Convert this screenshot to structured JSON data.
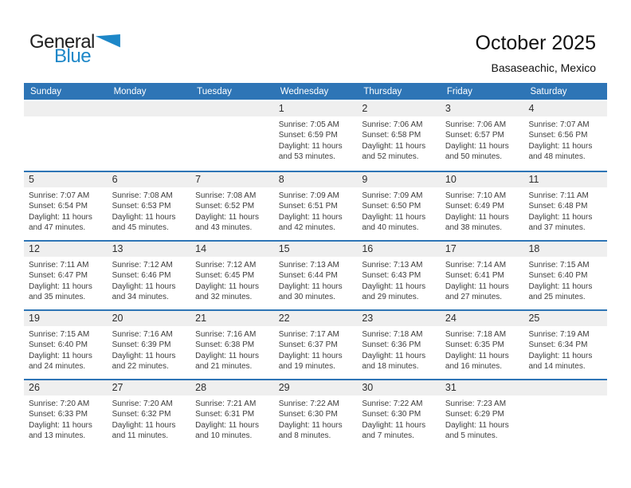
{
  "logo": {
    "part1": "General",
    "part2": "Blue",
    "triangle_icon": "pennant-triangle"
  },
  "header": {
    "title": "October 2025",
    "subtitle": "Basaseachic, Mexico"
  },
  "colors": {
    "header_bar_blue": "#2e75b6",
    "row_separator_blue": "#2e75b6",
    "date_band_gray": "#efefef",
    "logo_blue": "#1d87c8",
    "body_text": "#3d3d3d"
  },
  "weekdays": [
    "Sunday",
    "Monday",
    "Tuesday",
    "Wednesday",
    "Thursday",
    "Friday",
    "Saturday"
  ],
  "weeks": [
    [
      null,
      null,
      null,
      {
        "date": "1",
        "sunrise": "Sunrise: 7:05 AM",
        "sunset": "Sunset: 6:59 PM",
        "daylight1": "Daylight: 11 hours",
        "daylight2": "and 53 minutes."
      },
      {
        "date": "2",
        "sunrise": "Sunrise: 7:06 AM",
        "sunset": "Sunset: 6:58 PM",
        "daylight1": "Daylight: 11 hours",
        "daylight2": "and 52 minutes."
      },
      {
        "date": "3",
        "sunrise": "Sunrise: 7:06 AM",
        "sunset": "Sunset: 6:57 PM",
        "daylight1": "Daylight: 11 hours",
        "daylight2": "and 50 minutes."
      },
      {
        "date": "4",
        "sunrise": "Sunrise: 7:07 AM",
        "sunset": "Sunset: 6:56 PM",
        "daylight1": "Daylight: 11 hours",
        "daylight2": "and 48 minutes."
      }
    ],
    [
      {
        "date": "5",
        "sunrise": "Sunrise: 7:07 AM",
        "sunset": "Sunset: 6:54 PM",
        "daylight1": "Daylight: 11 hours",
        "daylight2": "and 47 minutes."
      },
      {
        "date": "6",
        "sunrise": "Sunrise: 7:08 AM",
        "sunset": "Sunset: 6:53 PM",
        "daylight1": "Daylight: 11 hours",
        "daylight2": "and 45 minutes."
      },
      {
        "date": "7",
        "sunrise": "Sunrise: 7:08 AM",
        "sunset": "Sunset: 6:52 PM",
        "daylight1": "Daylight: 11 hours",
        "daylight2": "and 43 minutes."
      },
      {
        "date": "8",
        "sunrise": "Sunrise: 7:09 AM",
        "sunset": "Sunset: 6:51 PM",
        "daylight1": "Daylight: 11 hours",
        "daylight2": "and 42 minutes."
      },
      {
        "date": "9",
        "sunrise": "Sunrise: 7:09 AM",
        "sunset": "Sunset: 6:50 PM",
        "daylight1": "Daylight: 11 hours",
        "daylight2": "and 40 minutes."
      },
      {
        "date": "10",
        "sunrise": "Sunrise: 7:10 AM",
        "sunset": "Sunset: 6:49 PM",
        "daylight1": "Daylight: 11 hours",
        "daylight2": "and 38 minutes."
      },
      {
        "date": "11",
        "sunrise": "Sunrise: 7:11 AM",
        "sunset": "Sunset: 6:48 PM",
        "daylight1": "Daylight: 11 hours",
        "daylight2": "and 37 minutes."
      }
    ],
    [
      {
        "date": "12",
        "sunrise": "Sunrise: 7:11 AM",
        "sunset": "Sunset: 6:47 PM",
        "daylight1": "Daylight: 11 hours",
        "daylight2": "and 35 minutes."
      },
      {
        "date": "13",
        "sunrise": "Sunrise: 7:12 AM",
        "sunset": "Sunset: 6:46 PM",
        "daylight1": "Daylight: 11 hours",
        "daylight2": "and 34 minutes."
      },
      {
        "date": "14",
        "sunrise": "Sunrise: 7:12 AM",
        "sunset": "Sunset: 6:45 PM",
        "daylight1": "Daylight: 11 hours",
        "daylight2": "and 32 minutes."
      },
      {
        "date": "15",
        "sunrise": "Sunrise: 7:13 AM",
        "sunset": "Sunset: 6:44 PM",
        "daylight1": "Daylight: 11 hours",
        "daylight2": "and 30 minutes."
      },
      {
        "date": "16",
        "sunrise": "Sunrise: 7:13 AM",
        "sunset": "Sunset: 6:43 PM",
        "daylight1": "Daylight: 11 hours",
        "daylight2": "and 29 minutes."
      },
      {
        "date": "17",
        "sunrise": "Sunrise: 7:14 AM",
        "sunset": "Sunset: 6:41 PM",
        "daylight1": "Daylight: 11 hours",
        "daylight2": "and 27 minutes."
      },
      {
        "date": "18",
        "sunrise": "Sunrise: 7:15 AM",
        "sunset": "Sunset: 6:40 PM",
        "daylight1": "Daylight: 11 hours",
        "daylight2": "and 25 minutes."
      }
    ],
    [
      {
        "date": "19",
        "sunrise": "Sunrise: 7:15 AM",
        "sunset": "Sunset: 6:40 PM",
        "daylight1": "Daylight: 11 hours",
        "daylight2": "and 24 minutes."
      },
      {
        "date": "20",
        "sunrise": "Sunrise: 7:16 AM",
        "sunset": "Sunset: 6:39 PM",
        "daylight1": "Daylight: 11 hours",
        "daylight2": "and 22 minutes."
      },
      {
        "date": "21",
        "sunrise": "Sunrise: 7:16 AM",
        "sunset": "Sunset: 6:38 PM",
        "daylight1": "Daylight: 11 hours",
        "daylight2": "and 21 minutes."
      },
      {
        "date": "22",
        "sunrise": "Sunrise: 7:17 AM",
        "sunset": "Sunset: 6:37 PM",
        "daylight1": "Daylight: 11 hours",
        "daylight2": "and 19 minutes."
      },
      {
        "date": "23",
        "sunrise": "Sunrise: 7:18 AM",
        "sunset": "Sunset: 6:36 PM",
        "daylight1": "Daylight: 11 hours",
        "daylight2": "and 18 minutes."
      },
      {
        "date": "24",
        "sunrise": "Sunrise: 7:18 AM",
        "sunset": "Sunset: 6:35 PM",
        "daylight1": "Daylight: 11 hours",
        "daylight2": "and 16 minutes."
      },
      {
        "date": "25",
        "sunrise": "Sunrise: 7:19 AM",
        "sunset": "Sunset: 6:34 PM",
        "daylight1": "Daylight: 11 hours",
        "daylight2": "and 14 minutes."
      }
    ],
    [
      {
        "date": "26",
        "sunrise": "Sunrise: 7:20 AM",
        "sunset": "Sunset: 6:33 PM",
        "daylight1": "Daylight: 11 hours",
        "daylight2": "and 13 minutes."
      },
      {
        "date": "27",
        "sunrise": "Sunrise: 7:20 AM",
        "sunset": "Sunset: 6:32 PM",
        "daylight1": "Daylight: 11 hours",
        "daylight2": "and 11 minutes."
      },
      {
        "date": "28",
        "sunrise": "Sunrise: 7:21 AM",
        "sunset": "Sunset: 6:31 PM",
        "daylight1": "Daylight: 11 hours",
        "daylight2": "and 10 minutes."
      },
      {
        "date": "29",
        "sunrise": "Sunrise: 7:22 AM",
        "sunset": "Sunset: 6:30 PM",
        "daylight1": "Daylight: 11 hours",
        "daylight2": "and 8 minutes."
      },
      {
        "date": "30",
        "sunrise": "Sunrise: 7:22 AM",
        "sunset": "Sunset: 6:30 PM",
        "daylight1": "Daylight: 11 hours",
        "daylight2": "and 7 minutes."
      },
      {
        "date": "31",
        "sunrise": "Sunrise: 7:23 AM",
        "sunset": "Sunset: 6:29 PM",
        "daylight1": "Daylight: 11 hours",
        "daylight2": "and 5 minutes."
      },
      null
    ]
  ]
}
